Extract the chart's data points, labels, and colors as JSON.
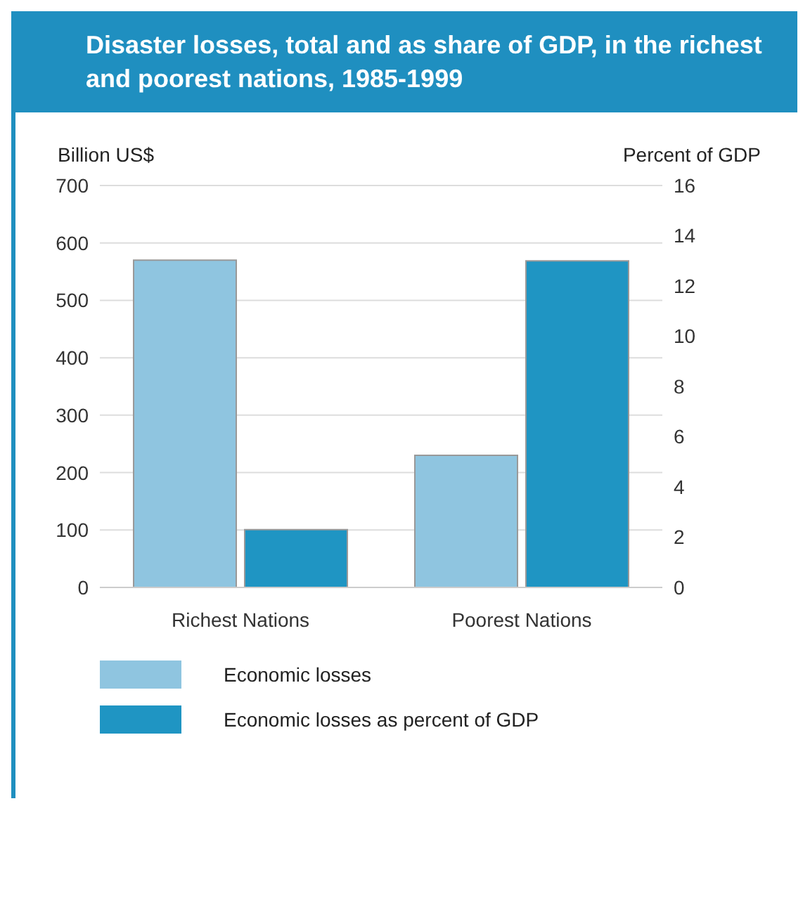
{
  "chart_data": {
    "type": "bar",
    "title": "Disaster losses, total and as share of GDP, in the richest and poorest nations, 1985-1999",
    "ylabel": "Billion US$",
    "y2label": "Percent of GDP",
    "categories": [
      "Richest Nations",
      "Poorest Nations"
    ],
    "series": [
      {
        "name": "Economic losses",
        "color": "#8fc5e0",
        "values": [
          570,
          230
        ]
      },
      {
        "name": "Economic losses as percent of GDP",
        "color": "#1f95c3",
        "values": [
          2.3,
          13.0
        ],
        "axis": "y2"
      }
    ],
    "ylim": [
      0,
      700
    ],
    "yticks": [
      0,
      100,
      200,
      300,
      400,
      500,
      600,
      700
    ],
    "y2lim": [
      0,
      16
    ],
    "y2ticks": [
      0,
      2,
      4,
      6,
      8,
      10,
      12,
      14,
      16
    ],
    "grid": "y",
    "legend": "bottom"
  }
}
